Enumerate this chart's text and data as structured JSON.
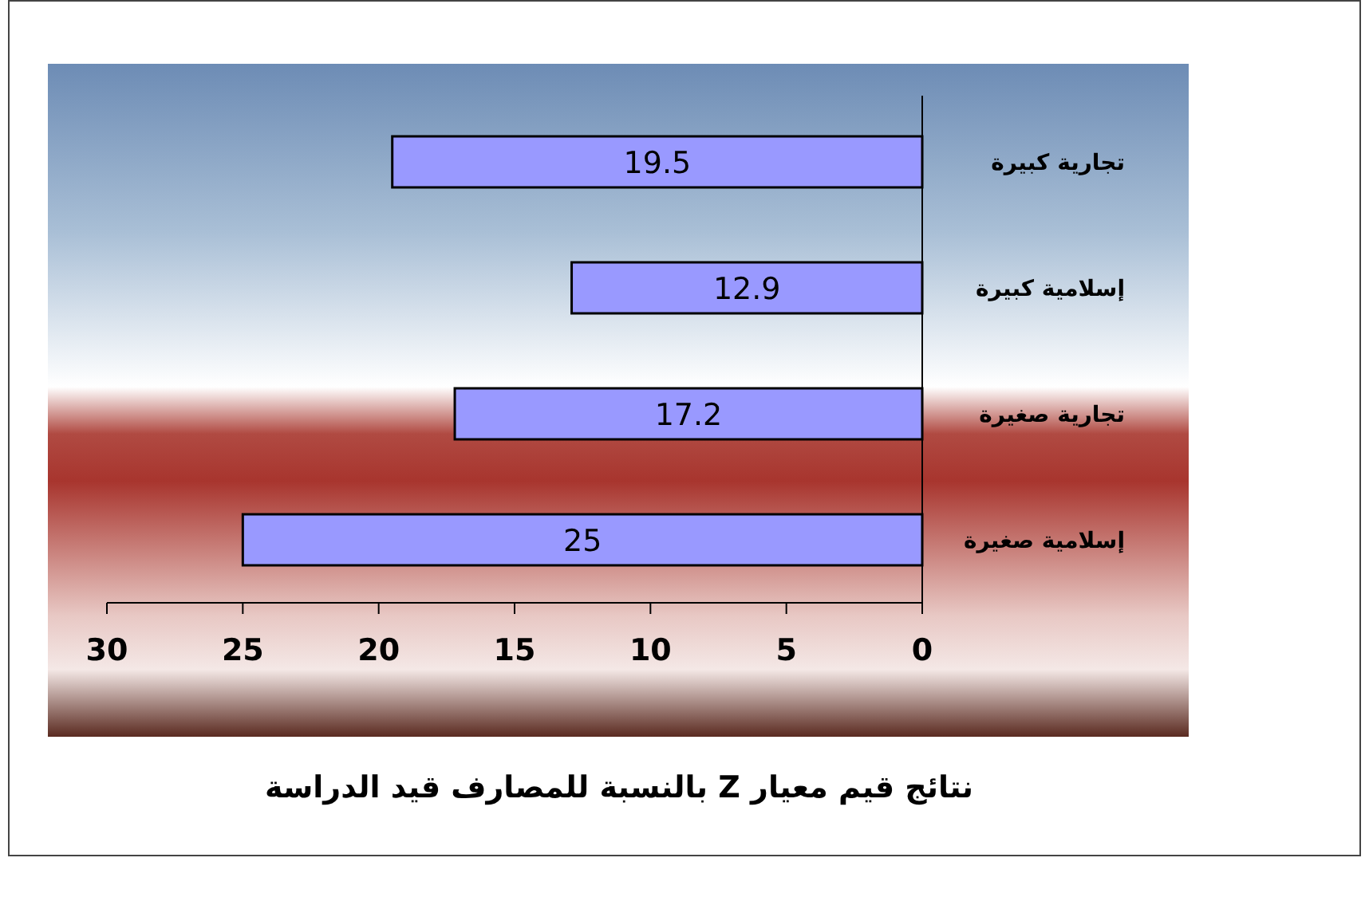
{
  "chart_data": {
    "type": "bar",
    "orientation": "horizontal",
    "title": "نتائج قيم معيار Z بالنسبة للمصارف قيد الدراسة",
    "categories": [
      "تجارية كبيرة",
      "إسلامية كبيرة",
      "تجارية صغيرة",
      "إسلامية صغيرة"
    ],
    "values": [
      19.5,
      12.9,
      17.2,
      25
    ],
    "color": "#9999ff",
    "xlim": [
      30,
      0
    ],
    "xticks": [
      30,
      25,
      20,
      15,
      10,
      5,
      0
    ],
    "data_labels": true
  }
}
